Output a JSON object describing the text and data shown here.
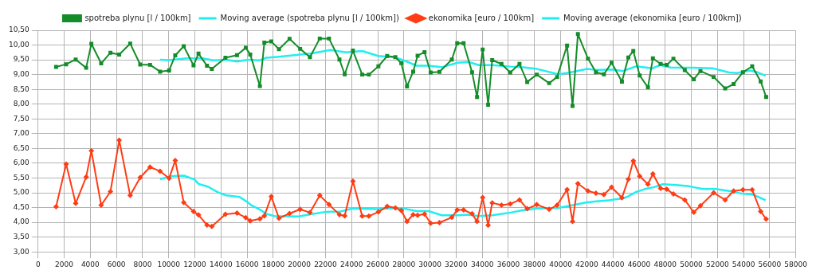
{
  "chart_data": {
    "type": "line",
    "legend": "top",
    "grid": true,
    "xlim": [
      0,
      58000
    ],
    "xticks": [
      0,
      2000,
      4000,
      6000,
      8000,
      10000,
      12000,
      14000,
      16000,
      18000,
      20000,
      22000,
      24000,
      26000,
      28000,
      30000,
      32000,
      34000,
      36000,
      38000,
      40000,
      42000,
      44000,
      46000,
      48000,
      50000,
      52000,
      54000,
      56000,
      58000
    ],
    "ylim": [
      3,
      10.5
    ],
    "yticks": [
      {
        "value": 3,
        "label": "3,00"
      },
      {
        "value": 3.5,
        "label": "3,50"
      },
      {
        "value": 4,
        "label": "4,00"
      },
      {
        "value": 4.5,
        "label": "4,50"
      },
      {
        "value": 5,
        "label": "5,00"
      },
      {
        "value": 5.5,
        "label": "5,50"
      },
      {
        "value": 6,
        "label": "6,00"
      },
      {
        "value": 6.5,
        "label": "6,50"
      },
      {
        "value": 7,
        "label": "7,00"
      },
      {
        "value": 7.5,
        "label": "7,50"
      },
      {
        "value": 8,
        "label": "8,00"
      },
      {
        "value": 8.5,
        "label": "8,50"
      },
      {
        "value": 9,
        "label": "9,00"
      },
      {
        "value": 9.5,
        "label": "9,50"
      },
      {
        "value": 10,
        "label": "10,00"
      },
      {
        "value": 10.5,
        "label": "10,50"
      }
    ],
    "series": [
      {
        "name": "spotreba plynu [l / 100km]",
        "color": "#158c2a",
        "marker": "square",
        "x": [
          1380,
          2150,
          2880,
          3680,
          4080,
          4830,
          5540,
          6210,
          7050,
          7820,
          8570,
          9340,
          10030,
          10500,
          11150,
          11900,
          12280,
          12930,
          13300,
          14340,
          15230,
          15900,
          16240,
          16980,
          17320,
          17850,
          18440,
          19250,
          20060,
          20810,
          21560,
          22270,
          23070,
          23470,
          24100,
          24810,
          25320,
          26050,
          26720,
          27350,
          27800,
          28240,
          28710,
          29050,
          29580,
          30050,
          30720,
          31670,
          32080,
          32570,
          33220,
          33600,
          34030,
          34450,
          34760,
          35470,
          36140,
          36850,
          37440,
          38170,
          39120,
          39730,
          40490,
          40910,
          41320,
          42090,
          42700,
          43310,
          43900,
          44690,
          45180,
          45560,
          46050,
          46680,
          47060,
          47650,
          48120,
          48630,
          49500,
          50190,
          50700,
          51710,
          52590,
          53240,
          53950,
          54660,
          55310,
          55730
        ],
        "values": [
          9.26,
          9.35,
          9.51,
          9.23,
          10.04,
          9.38,
          9.74,
          9.68,
          10.05,
          9.34,
          9.33,
          9.1,
          9.14,
          9.65,
          9.96,
          9.31,
          9.71,
          9.3,
          9.19,
          9.57,
          9.66,
          9.91,
          9.68,
          8.61,
          10.08,
          10.12,
          9.86,
          10.21,
          9.87,
          9.59,
          10.22,
          10.22,
          9.51,
          9.01,
          9.81,
          9.0,
          9.0,
          9.28,
          9.63,
          9.59,
          9.39,
          8.6,
          9.1,
          9.64,
          9.76,
          9.07,
          9.09,
          9.51,
          10.06,
          10.06,
          9.08,
          8.24,
          9.85,
          7.98,
          9.49,
          9.36,
          9.07,
          9.36,
          8.75,
          9.0,
          8.71,
          8.92,
          9.98,
          7.94,
          10.37,
          9.54,
          9.08,
          9.01,
          9.4,
          8.76,
          9.58,
          9.8,
          8.97,
          8.57,
          9.55,
          9.36,
          9.33,
          9.54,
          9.15,
          8.84,
          9.12,
          8.92,
          8.53,
          8.68,
          9.08,
          9.28,
          8.77,
          8.24
        ]
      },
      {
        "name": "Moving average (spotreba plynu [l / 100km])",
        "color": "#22eef0",
        "marker": "none",
        "x": [
          9340,
          10010,
          11370,
          12590,
          13400,
          14410,
          15230,
          16040,
          16950,
          17460,
          18270,
          19940,
          20950,
          22380,
          23590,
          24810,
          26030,
          27250,
          28060,
          28970,
          29890,
          30900,
          32120,
          32930,
          33740,
          34760,
          36180,
          36990,
          38210,
          39830,
          40710,
          42030,
          42740,
          43960,
          44770,
          45790,
          47000,
          47610,
          48420,
          50050,
          51670,
          52890,
          53500,
          54510,
          55120,
          55690
        ],
        "values": [
          9.5,
          9.49,
          9.55,
          9.55,
          9.48,
          9.5,
          9.44,
          9.5,
          9.48,
          9.57,
          9.6,
          9.67,
          9.72,
          9.83,
          9.75,
          9.8,
          9.63,
          9.59,
          9.47,
          9.3,
          9.3,
          9.25,
          9.4,
          9.43,
          9.32,
          9.32,
          9.27,
          9.25,
          9.19,
          9.01,
          9.07,
          9.19,
          9.16,
          9.17,
          9.12,
          9.28,
          9.21,
          9.32,
          9.24,
          9.23,
          9.21,
          9.07,
          9.05,
          9.14,
          9.07,
          8.96
        ]
      },
      {
        "name": "ekonomika [euro / 100km]",
        "color": "#ff3c14",
        "marker": "diamond",
        "x": [
          1380,
          2150,
          2880,
          3680,
          4080,
          4830,
          5540,
          6210,
          7050,
          7820,
          8570,
          9340,
          10030,
          10500,
          11150,
          11900,
          12280,
          12930,
          13300,
          14340,
          15230,
          15900,
          16240,
          16980,
          17320,
          17850,
          18440,
          19250,
          20060,
          20810,
          21560,
          22270,
          23070,
          23470,
          24100,
          24810,
          25320,
          26050,
          26720,
          27350,
          27800,
          28240,
          28710,
          29050,
          29580,
          30050,
          30720,
          31670,
          32080,
          32570,
          33220,
          33600,
          34030,
          34450,
          34760,
          35470,
          36140,
          36850,
          37440,
          38170,
          39120,
          39730,
          40490,
          40910,
          41320,
          42090,
          42700,
          43310,
          43900,
          44690,
          45180,
          45560,
          46050,
          46680,
          47060,
          47650,
          48120,
          48630,
          49500,
          50190,
          50700,
          51710,
          52590,
          53240,
          53950,
          54660,
          55310,
          55730
        ],
        "values": [
          4.53,
          5.97,
          4.64,
          5.53,
          6.42,
          4.58,
          5.04,
          6.78,
          4.91,
          5.52,
          5.87,
          5.73,
          5.49,
          6.09,
          4.67,
          4.37,
          4.25,
          3.91,
          3.86,
          4.27,
          4.31,
          4.16,
          4.05,
          4.12,
          4.22,
          4.87,
          4.14,
          4.3,
          4.44,
          4.33,
          4.91,
          4.6,
          4.26,
          4.22,
          5.39,
          4.21,
          4.21,
          4.35,
          4.54,
          4.49,
          4.4,
          4.03,
          4.26,
          4.24,
          4.28,
          3.97,
          3.99,
          4.17,
          4.42,
          4.42,
          4.29,
          4.03,
          4.84,
          3.9,
          4.66,
          4.58,
          4.62,
          4.76,
          4.46,
          4.6,
          4.44,
          4.58,
          5.11,
          4.03,
          5.31,
          5.06,
          4.99,
          4.94,
          5.19,
          4.83,
          5.46,
          6.08,
          5.56,
          5.29,
          5.64,
          5.15,
          5.12,
          4.96,
          4.76,
          4.34,
          4.56,
          5.0,
          4.76,
          5.06,
          5.1,
          5.1,
          4.37,
          4.11
        ]
      },
      {
        "name": "Moving average (ekonomika [euro / 100km])",
        "color": "#22eef0",
        "marker": "none",
        "x": [
          9340,
          10150,
          11170,
          11980,
          12280,
          12990,
          13800,
          14410,
          15430,
          16040,
          16340,
          16950,
          17460,
          18070,
          19940,
          20950,
          21960,
          23180,
          23990,
          24810,
          26030,
          27040,
          28060,
          28970,
          29890,
          30900,
          32120,
          32930,
          33740,
          34760,
          36180,
          36990,
          38210,
          39830,
          40710,
          41930,
          42740,
          43760,
          44770,
          45180,
          45790,
          46400,
          47210,
          47820,
          48830,
          49850,
          50860,
          51870,
          52890,
          53900,
          54720,
          55690
        ],
        "values": [
          5.46,
          5.56,
          5.58,
          5.45,
          5.3,
          5.21,
          5.01,
          4.91,
          4.86,
          4.68,
          4.57,
          4.44,
          4.29,
          4.21,
          4.2,
          4.28,
          4.35,
          4.37,
          4.46,
          4.46,
          4.45,
          4.48,
          4.46,
          4.38,
          4.38,
          4.24,
          4.24,
          4.26,
          4.21,
          4.24,
          4.33,
          4.4,
          4.47,
          4.49,
          4.56,
          4.67,
          4.71,
          4.75,
          4.81,
          4.88,
          5.03,
          5.12,
          5.2,
          5.29,
          5.26,
          5.22,
          5.13,
          5.13,
          5.06,
          4.97,
          4.94,
          4.75
        ]
      }
    ]
  }
}
